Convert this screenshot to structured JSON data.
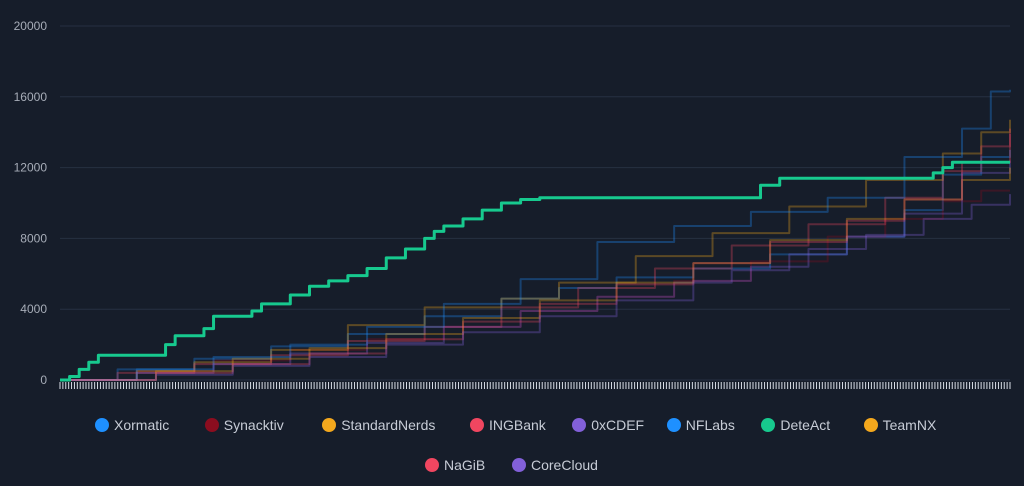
{
  "chart_data": {
    "type": "line",
    "y_ticks": [
      0,
      4000,
      8000,
      12000,
      16000,
      20000
    ],
    "ylim": [
      0,
      20000
    ],
    "grid": true,
    "legend_position": "bottom",
    "point_count": 100,
    "highlighted_series": "DeteAct",
    "series": [
      {
        "name": "Xormatic",
        "color": "#1e90ff",
        "points": [
          [
            0,
            0
          ],
          [
            6,
            600
          ],
          [
            14,
            1200
          ],
          [
            22,
            1900
          ],
          [
            30,
            2600
          ],
          [
            38,
            3600
          ],
          [
            46,
            4600
          ],
          [
            52,
            5200
          ],
          [
            58,
            5800
          ],
          [
            66,
            6300
          ],
          [
            74,
            7100
          ],
          [
            82,
            8100
          ],
          [
            88,
            9600
          ],
          [
            92,
            11600
          ],
          [
            96,
            12600
          ],
          [
            99,
            13000
          ]
        ]
      },
      {
        "name": "Synacktiv",
        "color": "#8b0d1f",
        "points": [
          [
            0,
            0
          ],
          [
            8,
            500
          ],
          [
            16,
            1100
          ],
          [
            24,
            1700
          ],
          [
            32,
            2300
          ],
          [
            40,
            3000
          ],
          [
            48,
            3900
          ],
          [
            56,
            4700
          ],
          [
            64,
            5600
          ],
          [
            72,
            6700
          ],
          [
            80,
            8100
          ],
          [
            86,
            9100
          ],
          [
            92,
            10100
          ],
          [
            96,
            10700
          ],
          [
            99,
            10700
          ]
        ]
      },
      {
        "name": "StandardNerds",
        "color": "#f4a81d",
        "points": [
          [
            0,
            0
          ],
          [
            8,
            500
          ],
          [
            14,
            1000
          ],
          [
            22,
            1700
          ],
          [
            30,
            3100
          ],
          [
            38,
            4100
          ],
          [
            46,
            4600
          ],
          [
            52,
            5500
          ],
          [
            60,
            7000
          ],
          [
            68,
            8300
          ],
          [
            76,
            9800
          ],
          [
            84,
            11300
          ],
          [
            92,
            12800
          ],
          [
            96,
            14000
          ],
          [
            99,
            14700
          ]
        ]
      },
      {
        "name": "INGBank",
        "color": "#f04660",
        "points": [
          [
            0,
            0
          ],
          [
            6,
            400
          ],
          [
            14,
            900
          ],
          [
            22,
            1400
          ],
          [
            30,
            2200
          ],
          [
            38,
            3000
          ],
          [
            46,
            4100
          ],
          [
            54,
            5200
          ],
          [
            62,
            6300
          ],
          [
            70,
            7600
          ],
          [
            78,
            8800
          ],
          [
            86,
            10300
          ],
          [
            92,
            11800
          ],
          [
            96,
            13200
          ],
          [
            99,
            13900
          ]
        ]
      },
      {
        "name": "0xCDEF",
        "color": "#8260d9",
        "points": [
          [
            0,
            0
          ],
          [
            8,
            400
          ],
          [
            16,
            900
          ],
          [
            24,
            1500
          ],
          [
            32,
            2100
          ],
          [
            40,
            3000
          ],
          [
            48,
            3900
          ],
          [
            56,
            4700
          ],
          [
            64,
            5500
          ],
          [
            70,
            6200
          ],
          [
            76,
            7100
          ],
          [
            82,
            8100
          ],
          [
            88,
            9400
          ],
          [
            94,
            11700
          ],
          [
            99,
            12400
          ]
        ]
      },
      {
        "name": "NFLabs",
        "color": "#1e90ff",
        "points": [
          [
            0,
            0
          ],
          [
            8,
            600
          ],
          [
            16,
            1300
          ],
          [
            24,
            2000
          ],
          [
            32,
            3000
          ],
          [
            40,
            4300
          ],
          [
            48,
            5700
          ],
          [
            56,
            7800
          ],
          [
            64,
            8700
          ],
          [
            72,
            9500
          ],
          [
            80,
            10300
          ],
          [
            88,
            12600
          ],
          [
            94,
            14200
          ],
          [
            97,
            16300
          ],
          [
            99,
            16400
          ]
        ]
      },
      {
        "name": "DeteAct",
        "color": "#17c98e",
        "points": [
          [
            0,
            0
          ],
          [
            1,
            200
          ],
          [
            2,
            600
          ],
          [
            3,
            1000
          ],
          [
            4,
            1400
          ],
          [
            10,
            1400
          ],
          [
            11,
            2000
          ],
          [
            12,
            2500
          ],
          [
            15,
            2900
          ],
          [
            16,
            3600
          ],
          [
            20,
            3900
          ],
          [
            21,
            4300
          ],
          [
            24,
            4800
          ],
          [
            26,
            5300
          ],
          [
            28,
            5600
          ],
          [
            30,
            5900
          ],
          [
            32,
            6300
          ],
          [
            34,
            6900
          ],
          [
            36,
            7400
          ],
          [
            38,
            8000
          ],
          [
            39,
            8400
          ],
          [
            40,
            8700
          ],
          [
            42,
            9100
          ],
          [
            44,
            9600
          ],
          [
            46,
            10000
          ],
          [
            48,
            10200
          ],
          [
            50,
            10300
          ],
          [
            64,
            10300
          ],
          [
            70,
            10300
          ],
          [
            72,
            10300
          ],
          [
            73,
            11000
          ],
          [
            74,
            11000
          ],
          [
            75,
            11400
          ],
          [
            87,
            11400
          ],
          [
            90,
            11400
          ],
          [
            91,
            11700
          ],
          [
            92,
            12000
          ],
          [
            93,
            12300
          ],
          [
            99,
            12300
          ]
        ]
      },
      {
        "name": "TeamNX",
        "color": "#f4a81d",
        "points": [
          [
            0,
            0
          ],
          [
            10,
            500
          ],
          [
            18,
            1200
          ],
          [
            26,
            1800
          ],
          [
            34,
            2600
          ],
          [
            42,
            3500
          ],
          [
            50,
            4500
          ],
          [
            58,
            5500
          ],
          [
            66,
            6600
          ],
          [
            74,
            7900
          ],
          [
            82,
            9100
          ],
          [
            88,
            10200
          ],
          [
            94,
            11300
          ],
          [
            99,
            12000
          ]
        ]
      },
      {
        "name": "NaGiB",
        "color": "#f04660",
        "points": [
          [
            0,
            0
          ],
          [
            10,
            400
          ],
          [
            18,
            900
          ],
          [
            26,
            1500
          ],
          [
            34,
            2300
          ],
          [
            42,
            3300
          ],
          [
            50,
            4300
          ],
          [
            58,
            5400
          ],
          [
            66,
            6600
          ],
          [
            74,
            7800
          ],
          [
            82,
            9000
          ],
          [
            88,
            10200
          ],
          [
            94,
            12300
          ],
          [
            99,
            14200
          ]
        ]
      },
      {
        "name": "CoreCloud",
        "color": "#8260d9",
        "points": [
          [
            0,
            0
          ],
          [
            10,
            300
          ],
          [
            18,
            800
          ],
          [
            26,
            1300
          ],
          [
            34,
            2000
          ],
          [
            42,
            2700
          ],
          [
            50,
            3600
          ],
          [
            58,
            4500
          ],
          [
            66,
            5600
          ],
          [
            72,
            6400
          ],
          [
            78,
            7400
          ],
          [
            84,
            8200
          ],
          [
            90,
            9100
          ],
          [
            95,
            9900
          ],
          [
            99,
            10500
          ]
        ]
      }
    ]
  }
}
